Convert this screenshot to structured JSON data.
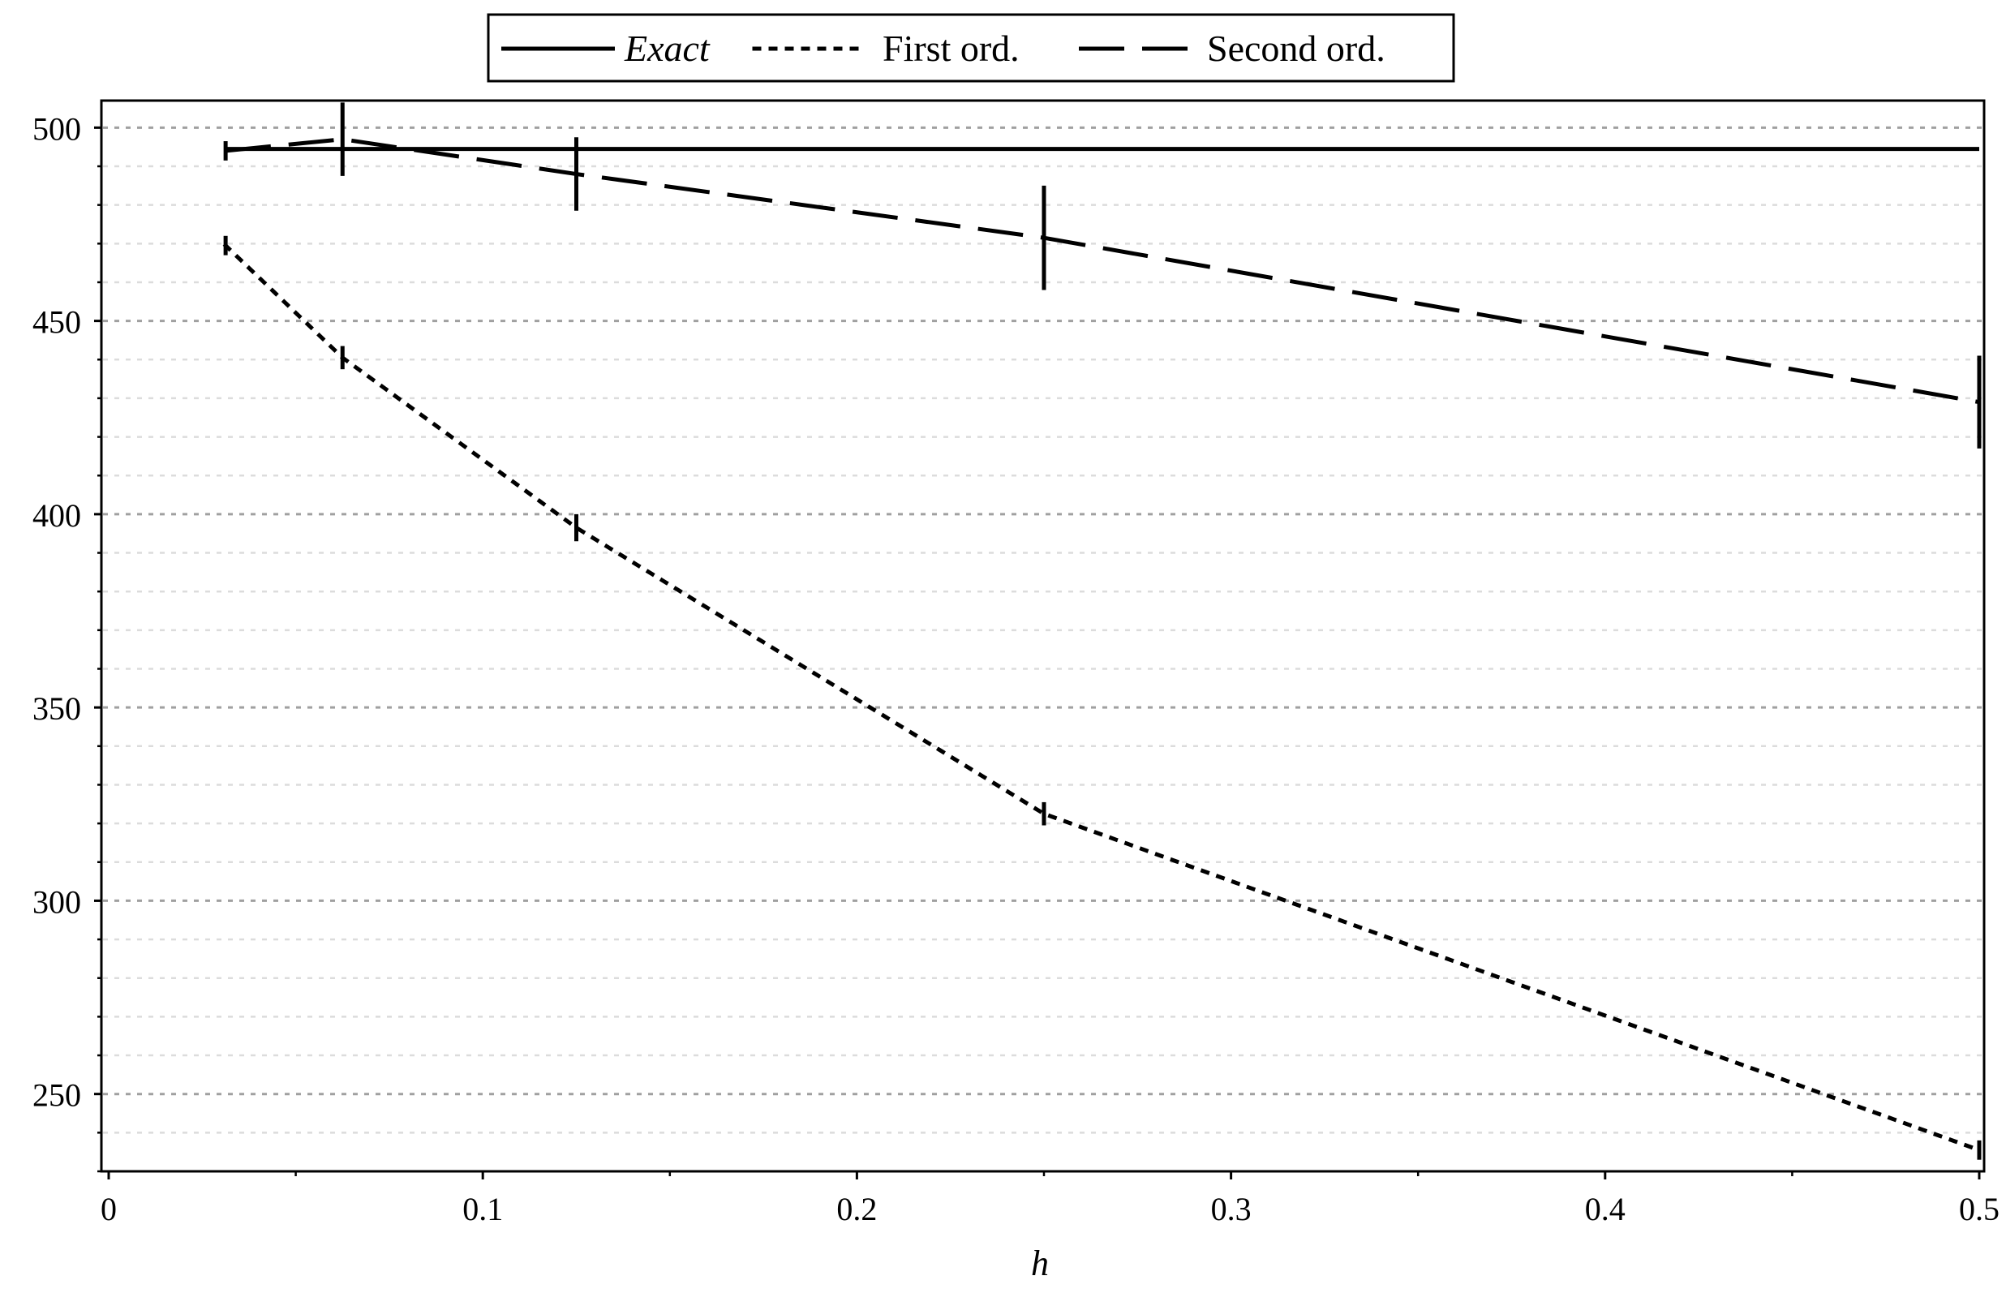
{
  "chart_data": {
    "type": "line",
    "title": "",
    "xlabel": "h",
    "ylabel": "",
    "xlim": [
      0,
      0.5
    ],
    "ylim": [
      230,
      507
    ],
    "xticks": [
      0,
      0.1,
      0.2,
      0.3,
      0.4,
      0.5
    ],
    "xtick_labels": [
      "0",
      "0.1",
      "0.2",
      "0.3",
      "0.4",
      "0.5"
    ],
    "yticks": [
      250,
      300,
      350,
      400,
      450,
      500
    ],
    "ytick_labels": [
      "250",
      "300",
      "350",
      "400",
      "450",
      "500"
    ],
    "yminor_step": 10,
    "xminor_step": 0.05,
    "grid": "horizontal dotted",
    "legend_position": "top-center, above plot",
    "series": [
      {
        "name": "Exact",
        "style": "solid",
        "name_italic": true,
        "x": [
          0.03125,
          0.0625,
          0.125,
          0.25,
          0.5
        ],
        "y": [
          494.5,
          494.5,
          494.5,
          494.5,
          494.5
        ],
        "error": [
          0,
          0,
          0,
          0,
          0
        ]
      },
      {
        "name": "First ord.",
        "style": "dotted",
        "x": [
          0.03125,
          0.0625,
          0.125,
          0.25,
          0.5
        ],
        "y": [
          469.5,
          440.5,
          396.5,
          322.5,
          235.5
        ],
        "error": [
          2.5,
          3.0,
          3.5,
          3.0,
          2.5
        ]
      },
      {
        "name": "Second ord.",
        "style": "dashed",
        "x": [
          0.03125,
          0.0625,
          0.125,
          0.25,
          0.5
        ],
        "y": [
          494,
          497,
          488,
          471.5,
          429
        ],
        "error": [
          2.5,
          9.5,
          9.5,
          13.5,
          12
        ]
      }
    ],
    "colors": {
      "line": "#000000",
      "grid": "#a0a0a0",
      "background": "#ffffff"
    }
  }
}
